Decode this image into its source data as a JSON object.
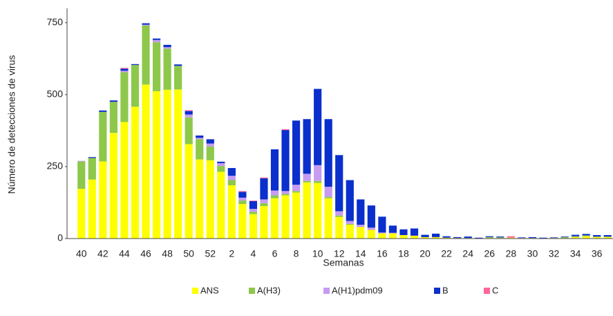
{
  "chart_data": {
    "type": "stacked_bar",
    "y_label": "Número de detecciones de virus",
    "x_label": "Semanas",
    "categories": [
      "40",
      null,
      "42",
      null,
      "44",
      null,
      "46",
      null,
      "48",
      null,
      "50",
      null,
      "52",
      null,
      "2",
      null,
      "4",
      null,
      "6",
      null,
      "8",
      null,
      "10",
      null,
      "12",
      null,
      "14",
      null,
      "16",
      null,
      "18",
      null,
      "20",
      null,
      "22",
      null,
      "24",
      null,
      "26",
      null,
      "28",
      null,
      "30",
      null,
      "32",
      null,
      "34",
      null,
      "36",
      null
    ],
    "ylim": [
      0,
      800
    ],
    "yticks": [
      0,
      250,
      500,
      750
    ],
    "series": [
      {
        "name": "ANS",
        "color": "#ffff00",
        "values": [
          173,
          205,
          268,
          367,
          405,
          458,
          535,
          512,
          517,
          518,
          328,
          275,
          272,
          232,
          185,
          120,
          85,
          113,
          140,
          150,
          160,
          195,
          193,
          140,
          75,
          48,
          40,
          30,
          18,
          18,
          12,
          10,
          5,
          5,
          3,
          2,
          2,
          1,
          2,
          2,
          3,
          2,
          2,
          1,
          2,
          2,
          5,
          8,
          5,
          5
        ]
      },
      {
        "name": "A(H3)",
        "color": "#8dc84b",
        "values": [
          95,
          75,
          172,
          108,
          173,
          145,
          205,
          170,
          143,
          82,
          93,
          70,
          48,
          20,
          18,
          12,
          8,
          10,
          10,
          5,
          5,
          5,
          7,
          5,
          5,
          3,
          0,
          0,
          0,
          0,
          0,
          0,
          0,
          0,
          0,
          0,
          0,
          0,
          3,
          2,
          0,
          0,
          0,
          0,
          0,
          3,
          3,
          3,
          2,
          2
        ]
      },
      {
        "name": "A(H1)pdm09",
        "color": "#c79cf0",
        "values": [
          2,
          0,
          0,
          0,
          5,
          0,
          3,
          8,
          5,
          0,
          10,
          5,
          10,
          10,
          15,
          10,
          10,
          13,
          17,
          10,
          22,
          25,
          55,
          35,
          15,
          10,
          8,
          8,
          3,
          2,
          0,
          0,
          0,
          0,
          0,
          0,
          0,
          0,
          0,
          0,
          0,
          0,
          0,
          0,
          0,
          0,
          0,
          0,
          0,
          0
        ]
      },
      {
        "name": "B",
        "color": "#0a2fcc",
        "values": [
          0,
          3,
          5,
          5,
          7,
          3,
          5,
          5,
          8,
          5,
          12,
          8,
          15,
          5,
          27,
          20,
          27,
          73,
          143,
          212,
          223,
          190,
          265,
          235,
          195,
          142,
          88,
          77,
          55,
          25,
          20,
          25,
          8,
          12,
          5,
          3,
          5,
          2,
          3,
          3,
          0,
          2,
          3,
          2,
          2,
          2,
          5,
          5,
          5,
          5
        ]
      },
      {
        "name": "C",
        "color": "#ff6699",
        "values": [
          0,
          0,
          0,
          0,
          3,
          0,
          0,
          0,
          0,
          0,
          3,
          0,
          0,
          0,
          0,
          3,
          2,
          3,
          0,
          3,
          0,
          0,
          0,
          0,
          0,
          0,
          0,
          0,
          0,
          0,
          0,
          0,
          0,
          0,
          0,
          0,
          0,
          0,
          0,
          0,
          5,
          0,
          0,
          0,
          0,
          0,
          0,
          0,
          0,
          0
        ]
      }
    ]
  }
}
